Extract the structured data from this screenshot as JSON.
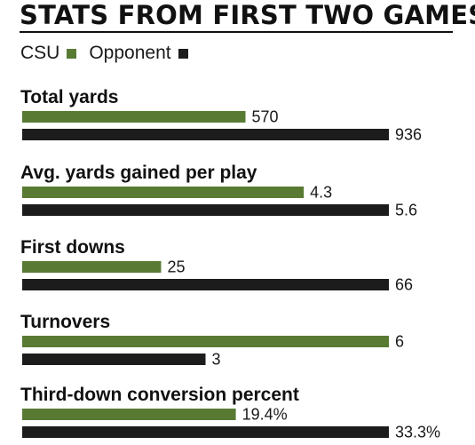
{
  "chart_data": {
    "type": "bar",
    "title": "STATS FROM FIRST TWO GAMES",
    "legend": {
      "position": "top-left"
    },
    "series": [
      {
        "name": "CSU",
        "color": "#587a33"
      },
      {
        "name": "Opponent",
        "color": "#1c1c1c"
      }
    ],
    "groups": [
      {
        "label": "Total yards",
        "values": [
          570,
          936
        ],
        "value_labels": [
          "570",
          "936"
        ]
      },
      {
        "label": "Avg. yards gained per play",
        "values": [
          4.3,
          5.6
        ],
        "value_labels": [
          "4.3",
          "5.6"
        ]
      },
      {
        "label": "First downs",
        "values": [
          25,
          66
        ],
        "value_labels": [
          "25",
          "66"
        ]
      },
      {
        "label": "Turnovers",
        "values": [
          6,
          3
        ],
        "value_labels": [
          "6",
          "3"
        ]
      },
      {
        "label": "Third-down conversion percent",
        "values": [
          19.4,
          33.3
        ],
        "value_labels": [
          "19.4%",
          "33.3%"
        ]
      }
    ]
  }
}
